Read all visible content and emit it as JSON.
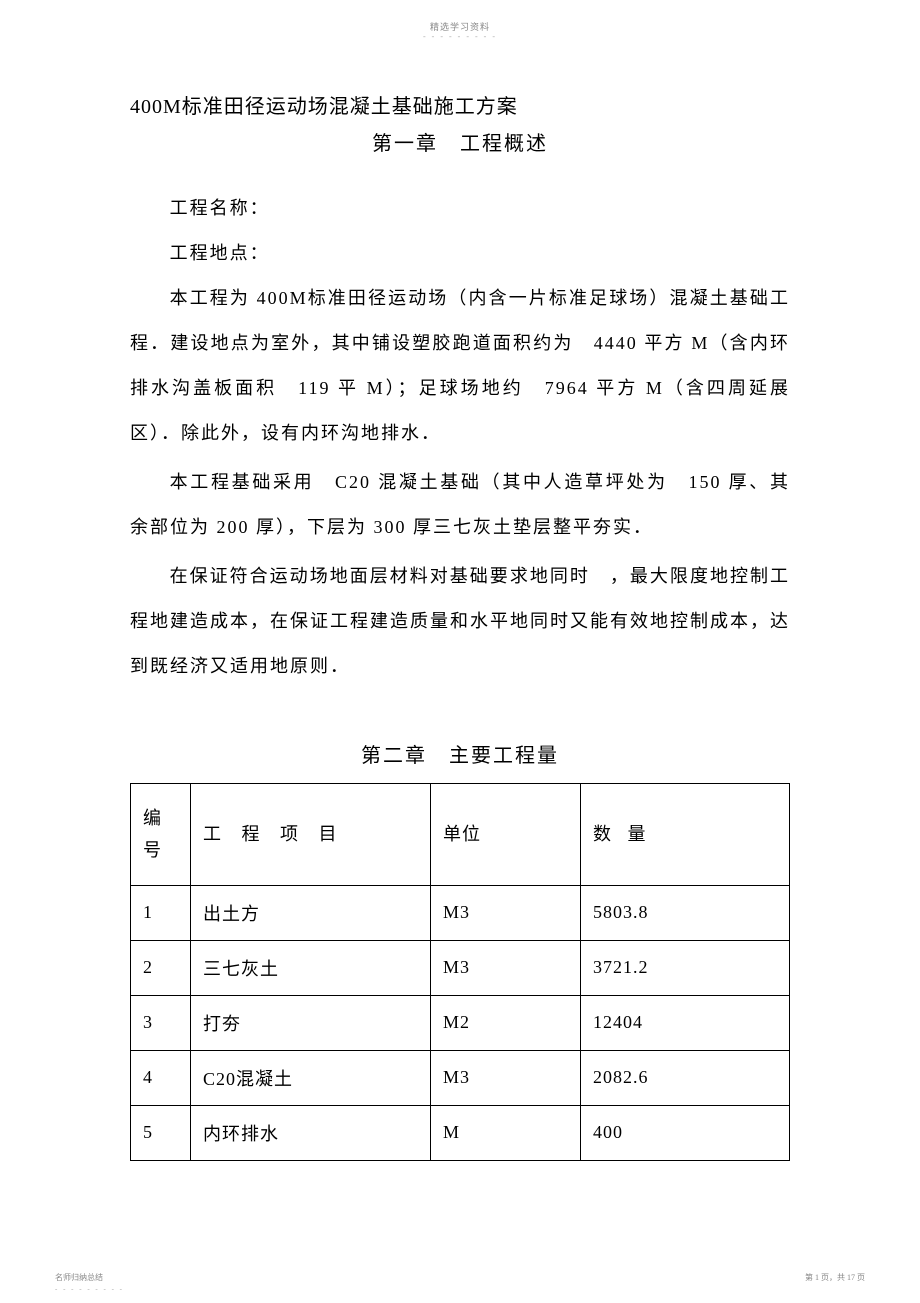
{
  "header": {
    "label": "精选学习资料",
    "dashes": "- - - - - - - - -"
  },
  "document": {
    "title": "400M标准田径运动场混凝土基础施工方案",
    "chapter1_title": "第一章　工程概述",
    "project_name_label": "工程名称：",
    "project_location_label": "工程地点：",
    "para1": "本工程为 400M标准田径运动场（内含一片标准足球场）混凝土基础工程．建设地点为室外，其中铺设塑胶跑道面积约为　4440 平方 M（含内环排水沟盖板面积　119 平 M）；足球场地约　7964 平方 M（含四周延展区）．除此外，设有内环沟地排水．",
    "para2": "本工程基础采用　C20 混凝土基础（其中人造草坪处为　150 厚、其余部位为 200 厚），下层为 300 厚三七灰土垫层整平夯实．",
    "para3": "在保证符合运动场地面层材料对基础要求地同时　，最大限度地控制工程地建造成本，在保证工程建造质量和水平地同时又能有效地控制成本，达到既经济又适用地原则．",
    "chapter2_title": "第二章　主要工程量"
  },
  "table": {
    "headers": {
      "num": "编号",
      "item": "工 程 项 目",
      "unit": "单位",
      "qty": "数 量"
    },
    "rows": [
      {
        "num": "1",
        "item": "出土方",
        "unit": "M3",
        "qty": "5803.8"
      },
      {
        "num": "2",
        "item": "三七灰土",
        "unit": "M3",
        "qty": "3721.2"
      },
      {
        "num": "3",
        "item": "打夯",
        "unit": "M2",
        "qty": "12404"
      },
      {
        "num": "4",
        "item": "C20混凝土",
        "unit": "M3",
        "qty": "2082.6"
      },
      {
        "num": "5",
        "item": "内环排水",
        "unit": "M",
        "qty": "400"
      }
    ]
  },
  "footer": {
    "left": "名师归纳总结",
    "left_dashes": "- - - - - - - - -",
    "right": "第 1 页，共 17 页"
  },
  "styles": {
    "body_bg": "#ffffff",
    "text_color": "#000000",
    "header_color": "#888888",
    "border_color": "#000000",
    "body_font_size": 18,
    "title_font_size": 20,
    "header_font_size": 9,
    "footer_font_size": 8
  }
}
